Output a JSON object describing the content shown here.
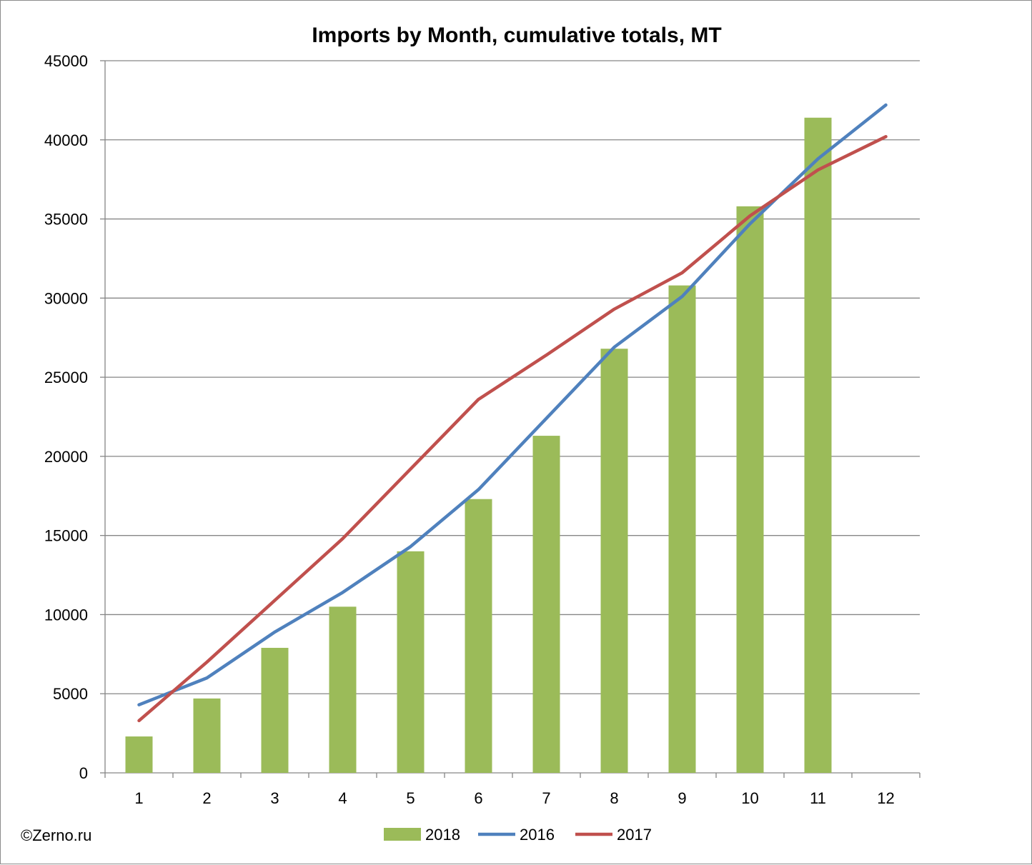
{
  "chart_data": {
    "type": "bar",
    "title": "Imports by Month, cumulative totals, MT",
    "xlabel": "",
    "ylabel": "",
    "categories": [
      "1",
      "2",
      "3",
      "4",
      "5",
      "6",
      "7",
      "8",
      "9",
      "10",
      "11",
      "12"
    ],
    "ylim": [
      0,
      45000
    ],
    "yticks": [
      "0",
      "5000",
      "10000",
      "15000",
      "20000",
      "25000",
      "30000",
      "35000",
      "40000",
      "45000"
    ],
    "grid": true,
    "legend_position": "bottom",
    "series": [
      {
        "name": "2018",
        "kind": "bar",
        "color": "#9bbb59",
        "values": [
          2300,
          4700,
          7900,
          10500,
          14000,
          17300,
          21300,
          26800,
          30800,
          35800,
          41400,
          null
        ]
      },
      {
        "name": "2016",
        "kind": "line",
        "color": "#4f81bd",
        "values": [
          4300,
          6000,
          8900,
          11400,
          14300,
          17900,
          22400,
          26900,
          30100,
          34700,
          38800,
          42200
        ]
      },
      {
        "name": "2017",
        "kind": "line",
        "color": "#c0504d",
        "values": [
          3300,
          7000,
          10900,
          14800,
          19200,
          23600,
          26400,
          29300,
          31600,
          35200,
          38100,
          40200
        ]
      }
    ]
  },
  "footer": {
    "credit": "©Zerno.ru"
  }
}
